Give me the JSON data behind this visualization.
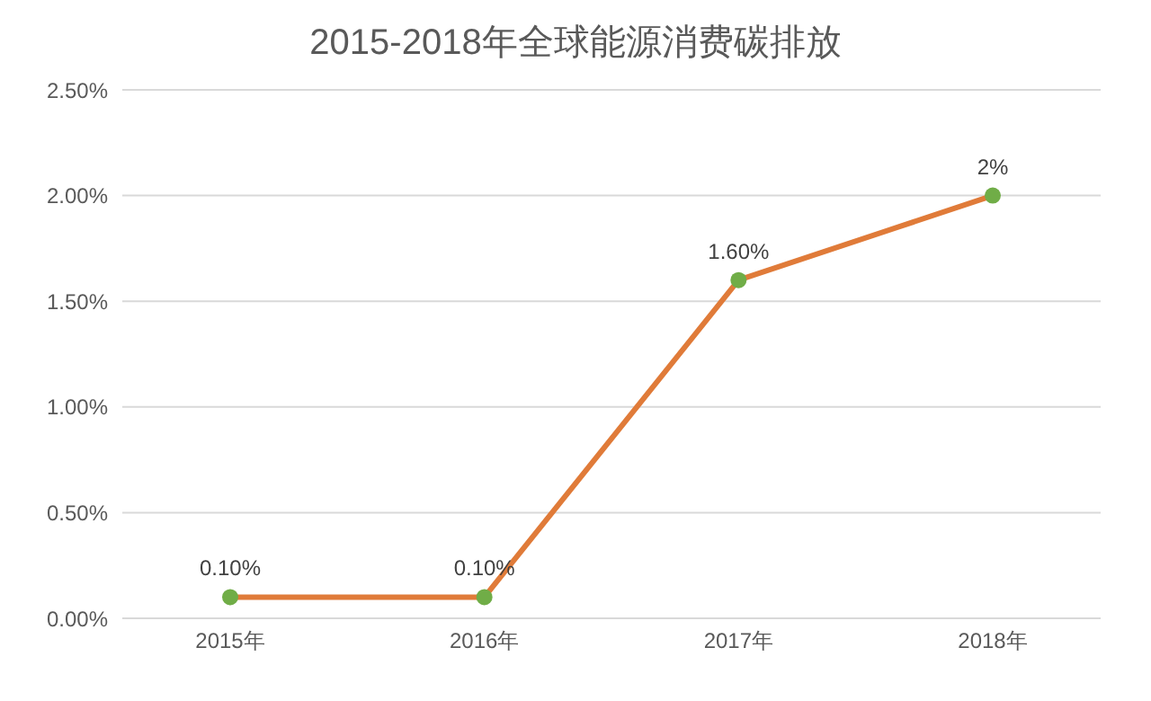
{
  "chart_data": {
    "type": "line",
    "title": "2015-2018年全球能源消费碳排放",
    "categories": [
      "2015年",
      "2016年",
      "2017年",
      "2018年"
    ],
    "series": [
      {
        "color": "#e07b39",
        "colors": [
          "#70ad47",
          "#70ad47",
          "#70ad47",
          "#70ad47"
        ],
        "values": [
          0.1,
          0.1,
          1.6,
          2
        ],
        "value_labels": [
          "0.10%",
          "0.10%",
          "1.60%",
          "2%"
        ]
      }
    ],
    "ylim": [
      0,
      2.5
    ],
    "yticks": [
      {
        "value": 0,
        "label": "0.00%"
      },
      {
        "value": 0.5,
        "label": "0.50%"
      },
      {
        "value": 1,
        "label": "1.00%"
      },
      {
        "value": 1.5,
        "label": "1.50%"
      },
      {
        "value": 2,
        "label": "2.00%"
      },
      {
        "value": 2.5,
        "label": "2.50%"
      }
    ],
    "grid": "y",
    "marker": "circle",
    "line_style": "solid"
  }
}
